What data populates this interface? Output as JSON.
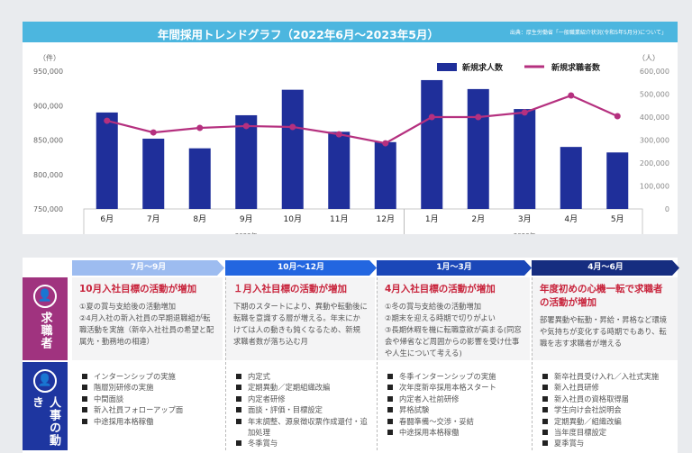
{
  "title": "年間採用トレンドグラフ（2022年6月〜2023年5月）",
  "source": "出典：厚生労働省「一般職業紹介状況(令和5年5月分)について」",
  "chart_data": {
    "type": "bar+line",
    "categories": [
      "6月",
      "7月",
      "8月",
      "9月",
      "10月",
      "11月",
      "12月",
      "1月",
      "2月",
      "3月",
      "4月",
      "5月"
    ],
    "year_groups": [
      {
        "label": "2022年",
        "from": 0,
        "to": 6
      },
      {
        "label": "2023年",
        "from": 7,
        "to": 11
      }
    ],
    "series": [
      {
        "name": "新規求人数",
        "type": "bar",
        "axis": "left",
        "color": "#1f2f9a",
        "values": [
          890000,
          852000,
          838000,
          886000,
          923000,
          862000,
          847000,
          937000,
          924000,
          895000,
          840000,
          832000
        ]
      },
      {
        "name": "新規求職者数",
        "type": "line",
        "axis": "right",
        "color": "#b5307f",
        "values": [
          384000,
          333000,
          353000,
          361000,
          357000,
          325000,
          286000,
          400000,
          400000,
          420000,
          494000,
          404000
        ]
      }
    ],
    "left_axis": {
      "unit": "（件）",
      "ylim": [
        750000,
        950000
      ],
      "ticks": [
        "950,000",
        "900,000",
        "850,000",
        "800,000",
        "750,000"
      ]
    },
    "right_axis": {
      "unit": "（人）",
      "ylim": [
        0,
        600000
      ],
      "ticks": [
        "600,000",
        "500,000",
        "400,000",
        "300,000",
        "200,000",
        "100,000",
        "0"
      ]
    },
    "legend": "top-right"
  },
  "schedule": {
    "phases": [
      {
        "label": "7月〜9月",
        "color": "#9dbcf0"
      },
      {
        "label": "10月〜12月",
        "color": "#2366e0"
      },
      {
        "label": "1月〜3月",
        "color": "#1a47b8"
      },
      {
        "label": "4月〜6月",
        "color": "#162d80"
      }
    ],
    "rows": {
      "seekers": {
        "label": "求職者",
        "color": "#a0337f"
      },
      "hr": {
        "label": "人事の動き",
        "color": "#1e36a0"
      }
    },
    "seekers": [
      {
        "heading": "10月入社目標の活動が増加",
        "body": "①夏の賞与支給後の活動増加\n②4月入社の新入社員の早期退職組が転職活動を実施（新卒入社社員の希望と配属先・勤務地の相違）"
      },
      {
        "heading": "１月入社目標の活動が増加",
        "body": "下期のスタートにより、異動や転動後に転職を意識する層が増える。年末にかけては人の動きも鈍くなるため、新規求職者数が落ち込む月"
      },
      {
        "heading": "4月入社目標の活動が増加",
        "body": "①冬の賞与支給後の活動増加\n②期末を迎える時期で切りがよい\n③長期休暇を機に転職意欲が高まる(同窓会や帰省など周囲からの影響を受け仕事や人生について考える)"
      },
      {
        "heading": "年度初めの心機一転で求職者の活動が増加",
        "body": "部署異動や転勤・昇給・昇格など環境や気持ちが変化する時期でもあり、転職を志す求職者が増える"
      }
    ],
    "hr": [
      [
        "インターンシップの実施",
        "階層別研修の実施",
        "中間面談",
        "新入社員フォローアップ面",
        "中途採用本格稼働"
      ],
      [
        "内定式",
        "定期異動／定期組織改編",
        "内定者研修",
        "面談・評価・目標設定",
        "年末調整、源泉徴収票作成還付・追加処理",
        "冬季賞与"
      ],
      [
        "冬季インターンシップの実施",
        "次年度新卒採用本格スタート",
        "内定者入社前研修",
        "昇格試験",
        "春闘準備〜交渉・妥結",
        "中途採用本格稼働"
      ],
      [
        "新卒社員受け入れ／入社式実施",
        "新入社員研修",
        "新入社員の資格取得届",
        "学生向け会社説明会",
        "定期異動／組織改編",
        "当年度目標設定",
        "夏季賞与"
      ]
    ]
  }
}
